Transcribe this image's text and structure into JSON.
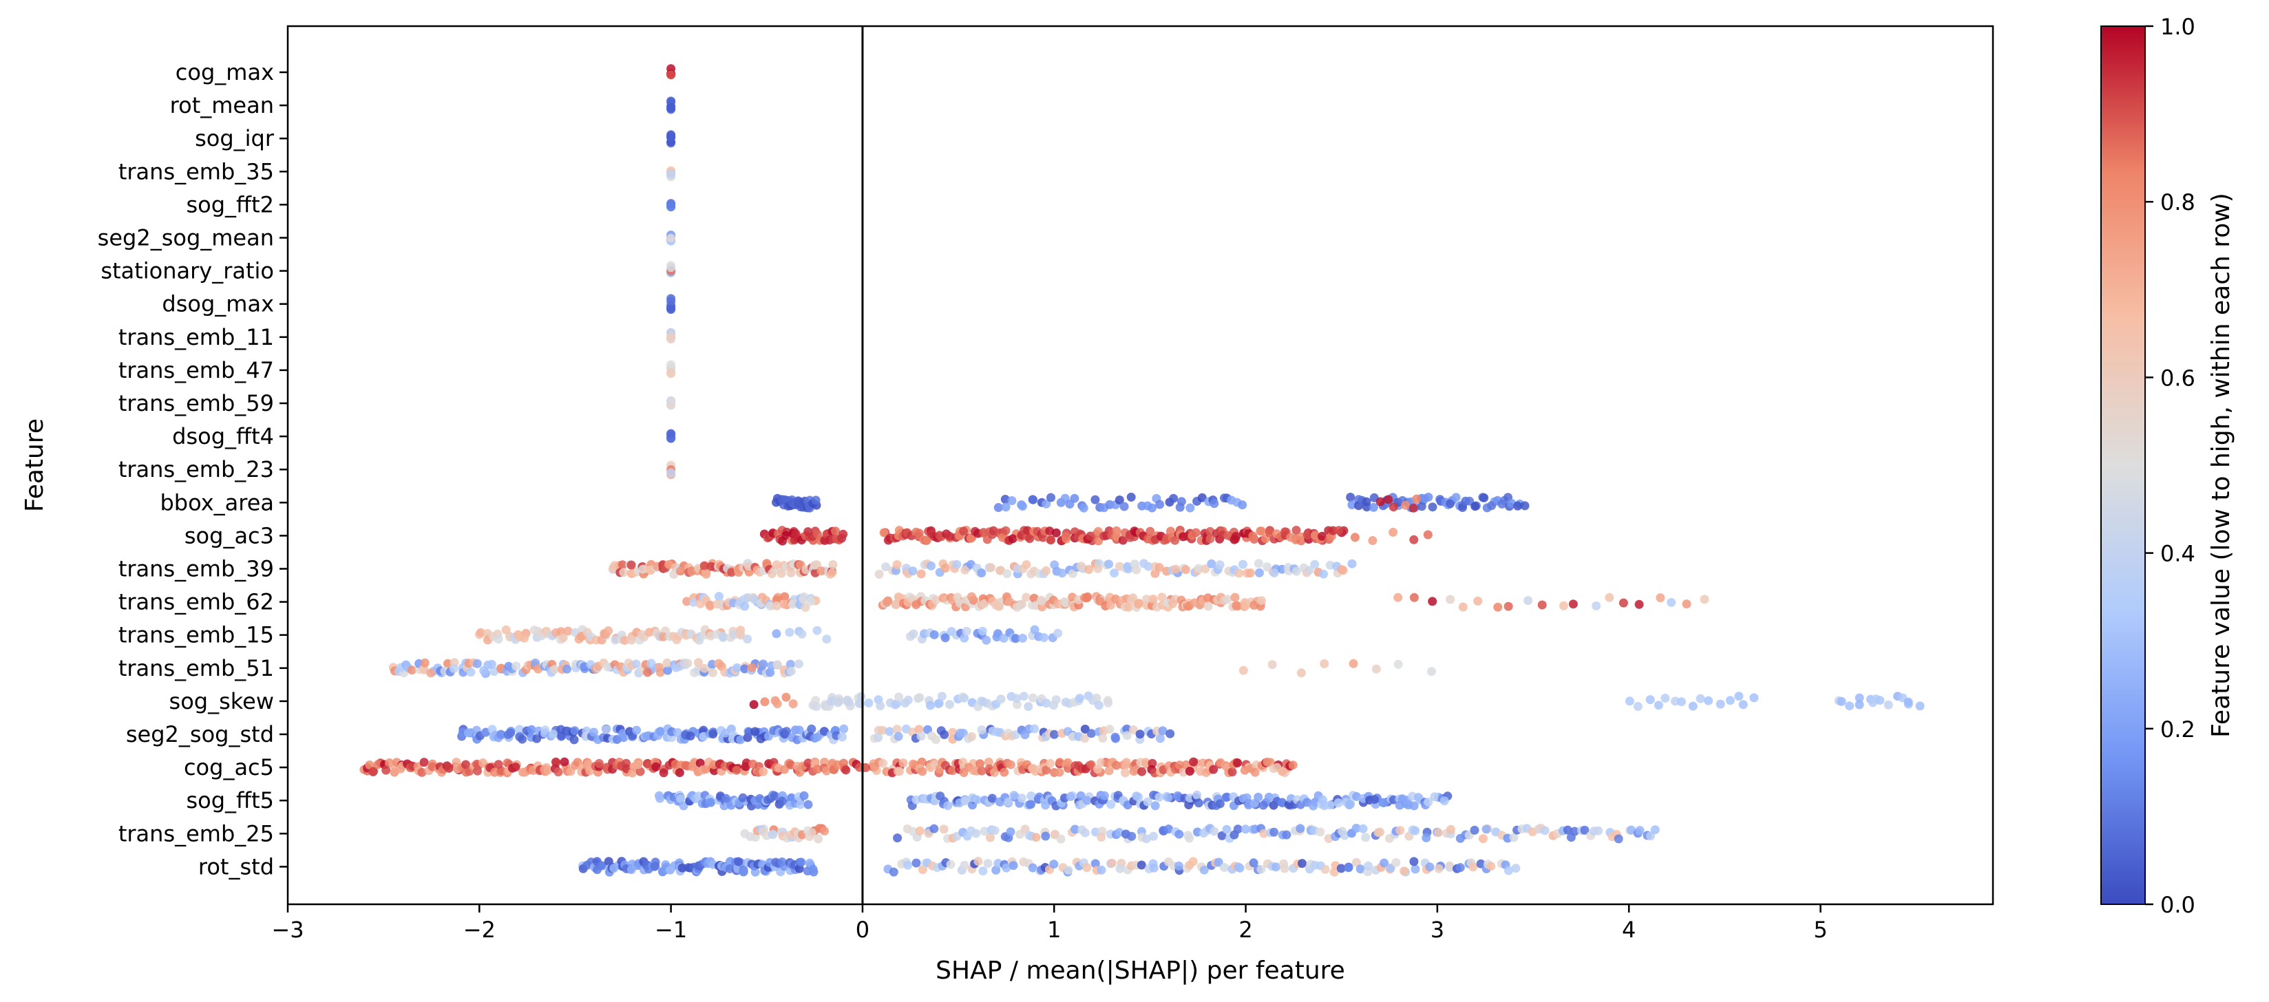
{
  "chart_data": {
    "type": "scatter",
    "title": "",
    "xlabel": "SHAP / mean(|SHAP|) per feature",
    "ylabel": "Feature",
    "xlim": [
      -3.0,
      5.9
    ],
    "xticks": [
      -3,
      -2,
      -1,
      0,
      1,
      2,
      3,
      4,
      5
    ],
    "xtick_labels": [
      "−3",
      "−2",
      "−1",
      "0",
      "1",
      "2",
      "3",
      "4",
      "5"
    ],
    "zero_line": 0,
    "grid": false,
    "colormap": "coolwarm",
    "colormap_stops": [
      "#3b4cc0",
      "#7396f5",
      "#b0cbfc",
      "#dddddd",
      "#f6bfa6",
      "#ee8468",
      "#b40426"
    ],
    "colorbar": {
      "label": "Feature value (low to high, within each row)",
      "min": 0.0,
      "max": 1.0,
      "ticks": [
        0.0,
        0.2,
        0.4,
        0.6,
        0.8,
        1.0
      ],
      "tick_labels": [
        "0.0",
        "0.2",
        "0.4",
        "0.6",
        "0.8",
        "1.0"
      ]
    },
    "features": [
      {
        "name": "cog_max",
        "clusters": [
          {
            "min": -1.0,
            "max": -1.0,
            "n": 6,
            "c": [
              0.85,
              1.0
            ]
          }
        ]
      },
      {
        "name": "rot_mean",
        "clusters": [
          {
            "min": -1.0,
            "max": -1.0,
            "n": 6,
            "c": [
              0.0,
              0.1
            ]
          }
        ]
      },
      {
        "name": "sog_iqr",
        "clusters": [
          {
            "min": -1.0,
            "max": -1.0,
            "n": 6,
            "c": [
              0.0,
              0.1
            ]
          }
        ]
      },
      {
        "name": "trans_emb_35",
        "clusters": [
          {
            "min": -1.0,
            "max": -1.0,
            "n": 6,
            "c": [
              0.35,
              0.7
            ]
          }
        ]
      },
      {
        "name": "sog_fft2",
        "clusters": [
          {
            "min": -1.0,
            "max": -1.0,
            "n": 6,
            "c": [
              0.1,
              0.2
            ]
          }
        ]
      },
      {
        "name": "seg2_sog_mean",
        "clusters": [
          {
            "min": -1.0,
            "max": -1.0,
            "n": 6,
            "c": [
              0.1,
              0.6
            ]
          }
        ]
      },
      {
        "name": "stationary_ratio",
        "clusters": [
          {
            "min": -1.0,
            "max": -1.0,
            "n": 6,
            "c": [
              0.0,
              0.9
            ]
          }
        ]
      },
      {
        "name": "dsog_max",
        "clusters": [
          {
            "min": -1.0,
            "max": -1.0,
            "n": 6,
            "c": [
              0.0,
              0.1
            ]
          }
        ]
      },
      {
        "name": "trans_emb_11",
        "clusters": [
          {
            "min": -1.0,
            "max": -1.0,
            "n": 6,
            "c": [
              0.3,
              0.65
            ]
          }
        ]
      },
      {
        "name": "trans_emb_47",
        "clusters": [
          {
            "min": -1.0,
            "max": -1.0,
            "n": 6,
            "c": [
              0.45,
              0.6
            ]
          }
        ]
      },
      {
        "name": "trans_emb_59",
        "clusters": [
          {
            "min": -1.0,
            "max": -1.0,
            "n": 6,
            "c": [
              0.4,
              0.55
            ]
          }
        ]
      },
      {
        "name": "dsog_fft4",
        "clusters": [
          {
            "min": -1.0,
            "max": -1.0,
            "n": 6,
            "c": [
              0.0,
              0.2
            ]
          }
        ]
      },
      {
        "name": "trans_emb_23",
        "clusters": [
          {
            "min": -1.0,
            "max": -1.0,
            "n": 4,
            "c": [
              0.1,
              1.0
            ]
          }
        ]
      },
      {
        "name": "bbox_area",
        "clusters": [
          {
            "min": -0.45,
            "max": -0.25,
            "n": 30,
            "c": [
              0.0,
              0.1
            ]
          },
          {
            "min": 0.7,
            "max": 2.0,
            "n": 45,
            "c": [
              0.0,
              0.25
            ]
          },
          {
            "min": 2.55,
            "max": 3.45,
            "n": 55,
            "c": [
              0.0,
              0.2
            ]
          },
          {
            "min": 2.7,
            "max": 2.9,
            "n": 6,
            "c": [
              0.8,
              1.0
            ]
          }
        ]
      },
      {
        "name": "sog_ac3",
        "clusters": [
          {
            "min": -0.5,
            "max": -0.1,
            "n": 40,
            "c": [
              0.85,
              1.0
            ]
          },
          {
            "min": 0.1,
            "max": 2.5,
            "n": 190,
            "c": [
              0.8,
              1.0
            ]
          },
          {
            "min": 2.5,
            "max": 2.95,
            "n": 6,
            "c": [
              0.75,
              1.0
            ]
          }
        ]
      },
      {
        "name": "trans_emb_39",
        "clusters": [
          {
            "min": -1.3,
            "max": -0.15,
            "n": 110,
            "c": [
              0.45,
              0.95
            ]
          },
          {
            "min": 0.1,
            "max": 2.55,
            "n": 110,
            "c": [
              0.2,
              0.75
            ]
          }
        ]
      },
      {
        "name": "trans_emb_62",
        "clusters": [
          {
            "min": -0.9,
            "max": -0.25,
            "n": 55,
            "c": [
              0.25,
              0.85
            ]
          },
          {
            "min": 0.1,
            "max": 2.1,
            "n": 150,
            "c": [
              0.5,
              0.85
            ]
          },
          {
            "min": 2.8,
            "max": 4.4,
            "n": 20,
            "c": [
              0.3,
              1.0
            ]
          }
        ]
      },
      {
        "name": "trans_emb_15",
        "clusters": [
          {
            "min": -2.0,
            "max": -0.6,
            "n": 90,
            "c": [
              0.4,
              0.75
            ]
          },
          {
            "min": -0.45,
            "max": -0.2,
            "n": 6,
            "c": [
              0.2,
              0.5
            ]
          },
          {
            "min": 0.25,
            "max": 1.0,
            "n": 30,
            "c": [
              0.1,
              0.45
            ]
          }
        ]
      },
      {
        "name": "trans_emb_51",
        "clusters": [
          {
            "min": -2.45,
            "max": -0.35,
            "n": 140,
            "c": [
              0.1,
              0.85
            ]
          },
          {
            "min": 2.0,
            "max": 2.95,
            "n": 8,
            "c": [
              0.35,
              0.75
            ]
          }
        ]
      },
      {
        "name": "sog_skew",
        "clusters": [
          {
            "min": -0.55,
            "max": -0.35,
            "n": 6,
            "c": [
              0.75,
              1.0
            ]
          },
          {
            "min": -0.25,
            "max": 0.0,
            "n": 20,
            "c": [
              0.4,
              0.5
            ]
          },
          {
            "min": 0.05,
            "max": 1.3,
            "n": 50,
            "c": [
              0.3,
              0.5
            ]
          },
          {
            "min": 4.0,
            "max": 4.65,
            "n": 15,
            "c": [
              0.3,
              0.4
            ]
          },
          {
            "min": 5.1,
            "max": 5.5,
            "n": 15,
            "c": [
              0.25,
              0.4
            ]
          }
        ]
      },
      {
        "name": "seg2_sog_std",
        "clusters": [
          {
            "min": -2.1,
            "max": -0.1,
            "n": 150,
            "c": [
              0.0,
              0.4
            ]
          },
          {
            "min": 0.05,
            "max": 1.6,
            "n": 70,
            "c": [
              0.0,
              0.7
            ]
          }
        ]
      },
      {
        "name": "cog_ac5",
        "clusters": [
          {
            "min": -2.6,
            "max": -0.05,
            "n": 200,
            "c": [
              0.7,
              1.0
            ]
          },
          {
            "min": 0.0,
            "max": 2.25,
            "n": 170,
            "c": [
              0.6,
              1.0
            ]
          }
        ]
      },
      {
        "name": "sog_fft5",
        "clusters": [
          {
            "min": -1.05,
            "max": -0.3,
            "n": 70,
            "c": [
              0.0,
              0.35
            ]
          },
          {
            "min": 0.25,
            "max": 3.05,
            "n": 180,
            "c": [
              0.0,
              0.4
            ]
          }
        ]
      },
      {
        "name": "trans_emb_25",
        "clusters": [
          {
            "min": -0.6,
            "max": -0.2,
            "n": 30,
            "c": [
              0.3,
              0.9
            ]
          },
          {
            "min": 0.2,
            "max": 4.15,
            "n": 150,
            "c": [
              0.05,
              0.7
            ]
          }
        ]
      },
      {
        "name": "rot_std",
        "clusters": [
          {
            "min": -1.45,
            "max": -0.25,
            "n": 120,
            "c": [
              0.0,
              0.3
            ]
          },
          {
            "min": 0.15,
            "max": 3.4,
            "n": 130,
            "c": [
              0.0,
              0.7
            ]
          }
        ]
      }
    ]
  }
}
